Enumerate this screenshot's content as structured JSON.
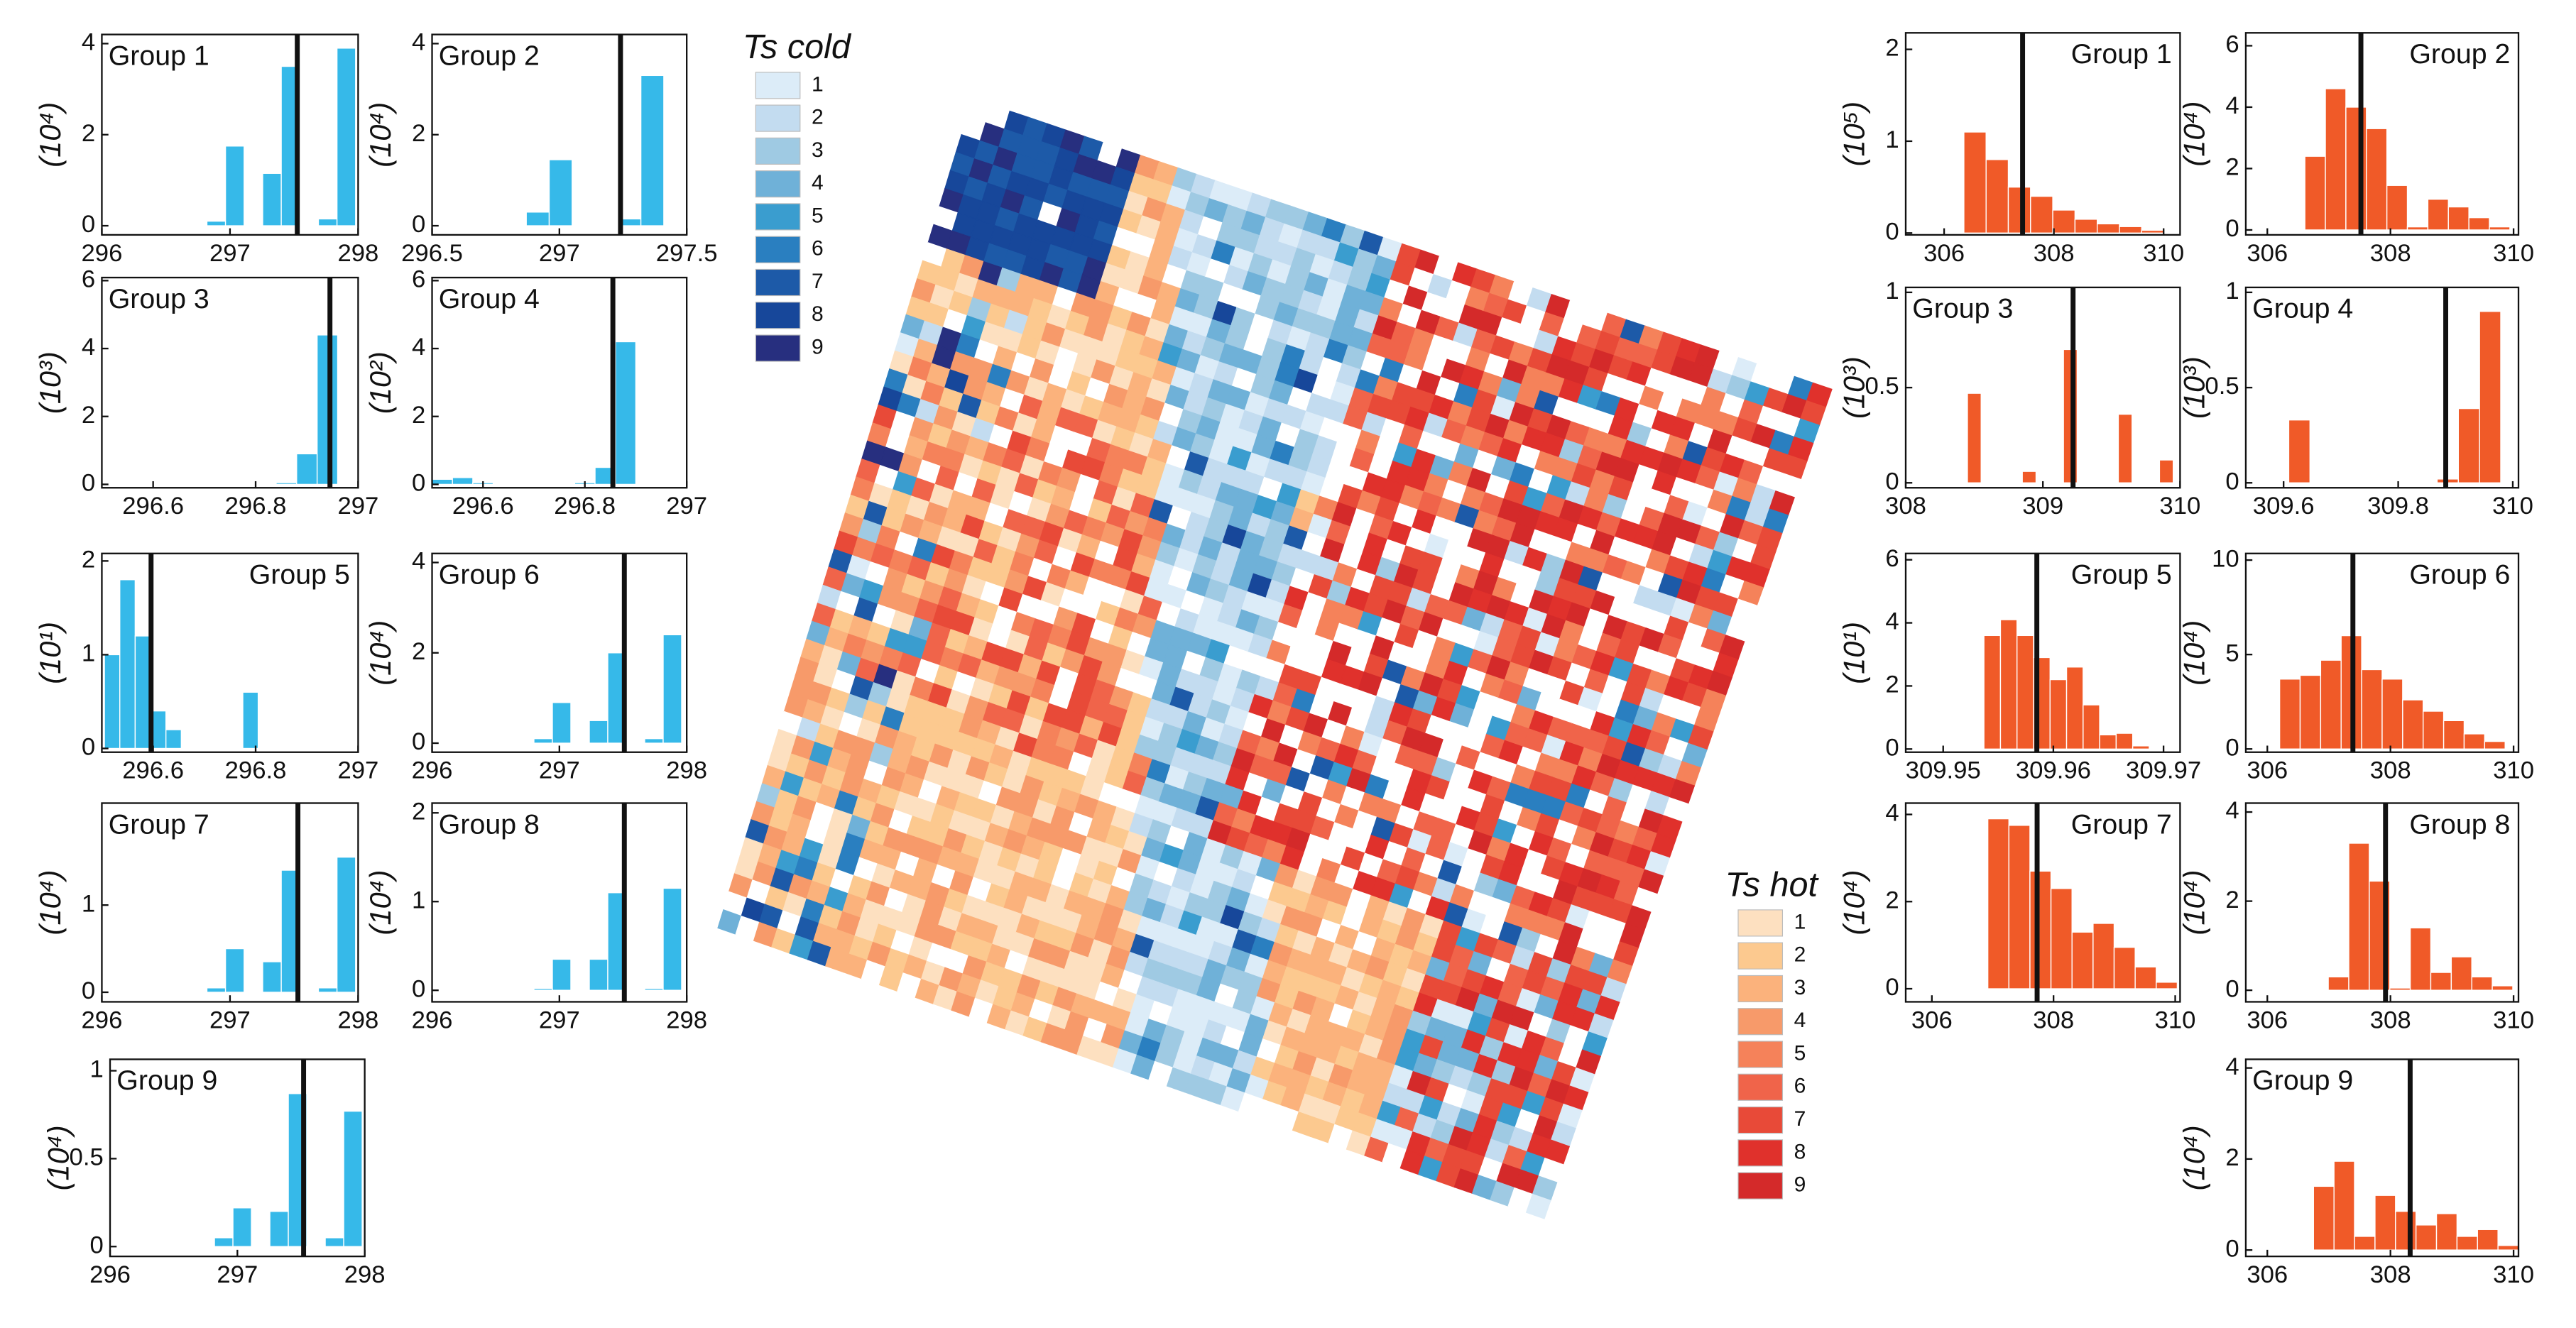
{
  "chart_data": [
    {
      "type": "histogram",
      "title": "Group 1",
      "ylabel": "(10⁴)",
      "color": "#36b9e9",
      "xlim": [
        296,
        298
      ],
      "xticks": [
        296,
        297,
        298
      ],
      "ylim": [
        -0.2,
        4.2
      ],
      "yticks": [
        0,
        2,
        4
      ],
      "bins": [
        296.82,
        296.965,
        297.11,
        297.255,
        297.4,
        297.545,
        297.69,
        297.835,
        297.98
      ],
      "counts": [
        0.1,
        1.75,
        0,
        1.15,
        3.5,
        0,
        0.15,
        3.9
      ],
      "vline": 297.525
    },
    {
      "type": "histogram",
      "title": "Group 2",
      "ylabel": "(10⁴)",
      "color": "#36b9e9",
      "xlim": [
        296.5,
        297.5
      ],
      "xticks": [
        296.5,
        297,
        297.5
      ],
      "ylim": [
        -0.2,
        4.2
      ],
      "yticks": [
        0,
        2,
        4
      ],
      "bins": [
        296.87,
        296.96,
        297.05,
        297.14,
        297.23,
        297.32,
        297.41
      ],
      "counts": [
        0.3,
        1.45,
        0,
        0,
        0.15,
        3.3
      ],
      "vline": 297.24
    },
    {
      "type": "histogram",
      "title": "Group 3",
      "ylabel": "(10³)",
      "color": "#36b9e9",
      "xlim": [
        296.5,
        297
      ],
      "xticks": [
        296.6,
        296.8,
        297
      ],
      "ylim": [
        -0.1,
        6.09
      ],
      "yticks": [
        0,
        2,
        4,
        6
      ],
      "bins": [
        296.84,
        296.88,
        296.92,
        296.96
      ],
      "counts": [
        0.05,
        0.9,
        4.4
      ],
      "vline": 296.945
    },
    {
      "type": "histogram",
      "title": "Group 4",
      "ylabel": "(10²)",
      "color": "#36b9e9",
      "xlim": [
        296.5,
        297
      ],
      "xticks": [
        296.6,
        296.8,
        297
      ],
      "ylim": [
        -0.1,
        6.09
      ],
      "yticks": [
        0,
        2,
        4,
        6
      ],
      "bins": [
        296.5,
        296.54,
        296.58,
        296.62,
        296.66,
        296.7,
        296.74,
        296.78,
        296.82,
        296.86,
        296.9
      ],
      "counts": [
        0.15,
        0.2,
        0.05,
        0,
        0,
        0,
        0,
        0.05,
        0.5,
        4.2
      ],
      "vline": 296.855
    },
    {
      "type": "histogram",
      "title": "Group 5",
      "ylabel": "(10¹)",
      "color": "#36b9e9",
      "xlim": [
        296.5,
        297
      ],
      "xticks": [
        296.6,
        296.8,
        297
      ],
      "ylim": [
        -0.04,
        2.08
      ],
      "yticks": [
        0,
        1,
        2
      ],
      "bins": [
        296.505,
        296.535,
        296.565,
        296.595,
        296.625,
        296.655,
        296.685,
        296.715,
        296.745,
        296.775,
        296.805
      ],
      "counts": [
        1,
        1.8,
        1.2,
        0.4,
        0.2,
        0,
        0,
        0,
        0,
        0.6
      ],
      "vline": 296.596
    },
    {
      "type": "histogram",
      "title": "Group 6",
      "ylabel": "(10⁴)",
      "color": "#36b9e9",
      "xlim": [
        296,
        298
      ],
      "xticks": [
        296,
        297,
        298
      ],
      "ylim": [
        -0.2,
        4.2
      ],
      "yticks": [
        0,
        2,
        4
      ],
      "bins": [
        296.8,
        296.945,
        297.09,
        297.235,
        297.38,
        297.525,
        297.67,
        297.815,
        297.96
      ],
      "counts": [
        0.1,
        0.9,
        0,
        0.5,
        2,
        0,
        0.1,
        2.4
      ],
      "vline": 297.51
    },
    {
      "type": "histogram",
      "title": "Group 7",
      "ylabel": "(10⁴)",
      "color": "#36b9e9",
      "xlim": [
        296,
        298
      ],
      "xticks": [
        296,
        297,
        298
      ],
      "ylim": [
        -0.11,
        2.17
      ],
      "yticks": [
        0,
        1
      ],
      "bins": [
        296.82,
        296.965,
        297.11,
        297.255,
        297.4,
        297.545,
        297.69,
        297.835,
        297.98
      ],
      "counts": [
        0.05,
        0.5,
        0,
        0.35,
        1.4,
        0,
        0.05,
        1.55
      ],
      "vline": 297.53
    },
    {
      "type": "histogram",
      "title": "Group 8",
      "ylabel": "(10⁴)",
      "color": "#36b9e9",
      "xlim": [
        296,
        298
      ],
      "xticks": [
        296,
        297,
        298
      ],
      "ylim": [
        -0.13,
        2.11
      ],
      "yticks": [
        0,
        1,
        2
      ],
      "bins": [
        296.8,
        296.945,
        297.09,
        297.235,
        297.38,
        297.525,
        297.67,
        297.815,
        297.96
      ],
      "counts": [
        0.02,
        0.35,
        0,
        0.35,
        1.1,
        0,
        0.02,
        1.15
      ],
      "vline": 297.51
    },
    {
      "type": "histogram",
      "title": "Group 9",
      "ylabel": "(10⁴)",
      "color": "#36b9e9",
      "xlim": [
        296,
        298
      ],
      "xticks": [
        296,
        297,
        298
      ],
      "ylim": [
        -0.056,
        1.065
      ],
      "yticks": [
        0,
        0.5,
        1
      ],
      "bins": [
        296.82,
        296.965,
        297.11,
        297.255,
        297.4,
        297.545,
        297.69,
        297.835,
        297.98
      ],
      "counts": [
        0.05,
        0.22,
        0,
        0.2,
        0.87,
        0,
        0.05,
        0.77
      ],
      "vline": 297.52
    },
    {
      "type": "histogram",
      "title": "Group 1",
      "ylabel": "(10⁵)",
      "color": "#f05a28",
      "xlim": [
        305.3,
        310.3
      ],
      "xticks": [
        306,
        308,
        310
      ],
      "ylim": [
        -0.02,
        2.18
      ],
      "yticks": [
        0,
        1,
        2
      ],
      "bins": [
        306.36,
        306.765,
        307.17,
        307.575,
        307.98,
        308.385,
        308.79,
        309.195,
        309.6,
        310.005
      ],
      "counts": [
        1.1,
        0.8,
        0.5,
        0.4,
        0.25,
        0.15,
        0.1,
        0.07,
        0.03
      ],
      "vline": 307.43
    },
    {
      "type": "histogram",
      "title": "Group 2",
      "ylabel": "(10⁴)",
      "color": "#f05a28",
      "xlim": [
        305.65,
        310.08
      ],
      "xticks": [
        306,
        308,
        310
      ],
      "ylim": [
        -0.16,
        6.42
      ],
      "yticks": [
        0,
        2,
        4,
        6
      ],
      "bins": [
        306.61,
        306.943,
        307.276,
        307.609,
        307.942,
        308.275,
        308.608,
        308.941,
        309.274,
        309.607,
        309.94
      ],
      "counts": [
        2.4,
        4.6,
        4,
        3.3,
        1.45,
        0.1,
        1,
        0.75,
        0.4,
        0.1
      ],
      "vline": 307.52
    },
    {
      "type": "histogram",
      "title": "Group 3",
      "ylabel": "(10³)",
      "color": "#f05a28",
      "xlim": [
        308,
        310
      ],
      "xticks": [
        308,
        309,
        310
      ],
      "ylim": [
        -0.026,
        1.026
      ],
      "yticks": [
        0,
        0.5,
        1
      ],
      "bins": [
        308.45,
        308.55,
        308.65,
        308.75,
        308.85,
        308.95,
        309.05,
        309.15,
        309.25,
        309.35,
        309.45,
        309.55,
        309.65,
        309.75,
        309.85,
        309.95
      ],
      "counts": [
        0.47,
        0,
        0,
        0,
        0.06,
        0,
        0,
        0.7,
        0,
        0,
        0,
        0.36,
        0,
        0,
        0.12
      ],
      "vline": 309.22
    },
    {
      "type": "histogram",
      "title": "Group 4",
      "ylabel": "(10³)",
      "color": "#f05a28",
      "xlim": [
        309.534,
        310.01
      ],
      "xticks": [
        309.6,
        309.8,
        310
      ],
      "ylim": [
        -0.026,
        1.026
      ],
      "yticks": [
        0,
        0.5,
        1
      ],
      "bins": [
        309.609,
        309.646,
        309.683,
        309.72,
        309.757,
        309.794,
        309.831,
        309.868,
        309.905,
        309.942,
        309.979
      ],
      "counts": [
        0.33,
        0,
        0,
        0,
        0,
        0,
        0,
        0.02,
        0.39,
        0.9
      ],
      "vline": 309.883
    },
    {
      "type": "histogram",
      "title": "Group 5",
      "ylabel": "(10¹)",
      "color": "#f05a28",
      "xlim": [
        309.9466,
        309.9715
      ],
      "xticks": [
        309.95,
        309.96,
        309.97
      ],
      "ylim": [
        -0.1,
        6.2
      ],
      "yticks": [
        0,
        2,
        4,
        6
      ],
      "bins": [
        309.9537,
        309.9552,
        309.9567,
        309.9582,
        309.9597,
        309.9612,
        309.9627,
        309.9642,
        309.9657,
        309.9672,
        309.9687
      ],
      "counts": [
        3.6,
        4.1,
        3.6,
        2.9,
        2.2,
        2.6,
        1.4,
        0.45,
        0.5,
        0.1
      ],
      "vline": 309.9585
    },
    {
      "type": "histogram",
      "title": "Group 6",
      "ylabel": "(10⁴)",
      "color": "#f05a28",
      "xlim": [
        305.65,
        310.08
      ],
      "xticks": [
        306,
        308,
        310
      ],
      "ylim": [
        -0.17,
        10.35
      ],
      "yticks": [
        0,
        5,
        10
      ],
      "bins": [
        306.2,
        306.533,
        306.866,
        307.199,
        307.532,
        307.865,
        308.198,
        308.531,
        308.864,
        309.197,
        309.53,
        309.863
      ],
      "counts": [
        3.7,
        3.9,
        4.7,
        6,
        4.2,
        3.7,
        2.6,
        2,
        1.5,
        0.8,
        0.4
      ],
      "vline": 307.39
    },
    {
      "type": "histogram",
      "title": "Group 7",
      "ylabel": "(10⁴)",
      "color": "#f05a28",
      "xlim": [
        305.57,
        310.08
      ],
      "xticks": [
        306,
        308,
        310
      ],
      "ylim": [
        -0.3,
        4.26
      ],
      "yticks": [
        0,
        2,
        4
      ],
      "bins": [
        306.92,
        307.266,
        307.612,
        307.958,
        308.304,
        308.65,
        308.996,
        309.342,
        309.688,
        310.034
      ],
      "counts": [
        3.9,
        3.75,
        2.7,
        2.3,
        1.3,
        1.5,
        0.95,
        0.5,
        0.15
      ],
      "vline": 307.73
    },
    {
      "type": "histogram",
      "title": "Group 8",
      "ylabel": "(10⁴)",
      "color": "#f05a28",
      "xlim": [
        305.65,
        310.08
      ],
      "xticks": [
        306,
        308,
        310
      ],
      "ylim": [
        -0.26,
        4.2
      ],
      "yticks": [
        0,
        2,
        4
      ],
      "bins": [
        306.99,
        307.323,
        307.656,
        307.989,
        308.322,
        308.655,
        308.988,
        309.321,
        309.654,
        309.987
      ],
      "counts": [
        0.3,
        3.3,
        2.45,
        0.05,
        1.4,
        0.4,
        0.75,
        0.3,
        0.1
      ],
      "vline": 307.92
    },
    {
      "type": "histogram",
      "title": "Group 9",
      "ylabel": "(10⁴)",
      "color": "#f05a28",
      "xlim": [
        305.65,
        310.08
      ],
      "xticks": [
        306,
        308,
        310
      ],
      "ylim": [
        -0.14,
        4.19
      ],
      "yticks": [
        0,
        2,
        4
      ],
      "bins": [
        306.75,
        307.083,
        307.416,
        307.749,
        308.082,
        308.415,
        308.748,
        309.081,
        309.414,
        309.747,
        310.08
      ],
      "counts": [
        1.4,
        1.95,
        0.3,
        1.2,
        0.85,
        0.55,
        0.8,
        0.3,
        0.45,
        0.1
      ],
      "vline": 308.32
    },
    {
      "type": "legend",
      "title": "Ts cold",
      "labels": [
        "1",
        "2",
        "3",
        "4",
        "5",
        "6",
        "7",
        "8",
        "9"
      ],
      "colors": [
        "#dcecf8",
        "#c3dcf0",
        "#9fcae3",
        "#6fb1d8",
        "#3a9dcf",
        "#2a7fc0",
        "#1d5aa8",
        "#17479a",
        "#272f7f"
      ]
    },
    {
      "type": "legend",
      "title": "Ts hot",
      "labels": [
        "1",
        "2",
        "3",
        "4",
        "5",
        "6",
        "7",
        "8",
        "9"
      ],
      "colors": [
        "#fde0c0",
        "#fcc98f",
        "#fbb27c",
        "#f79a6a",
        "#f5825a",
        "#f0644a",
        "#e84a38",
        "#e0312c",
        "#d42a2a"
      ]
    }
  ]
}
